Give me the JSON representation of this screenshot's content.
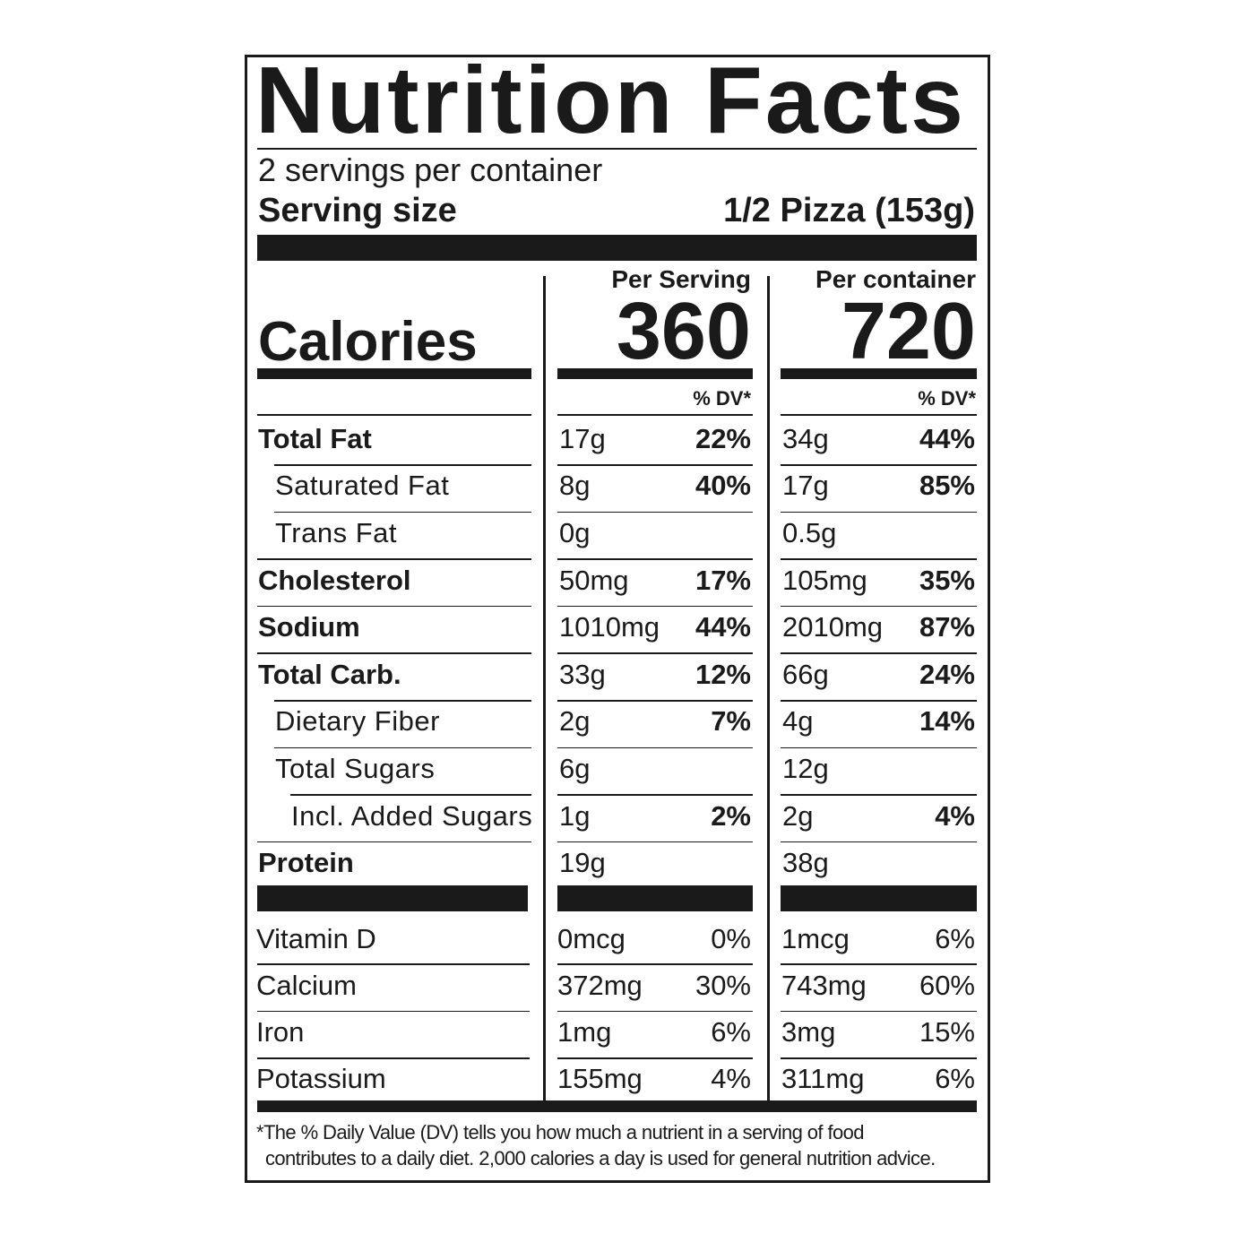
{
  "header": {
    "title": "Nutrition Facts",
    "servings": "2 servings per container",
    "serving_size_label": "Serving size",
    "serving_size_value": "1/2 Pizza (153g)"
  },
  "calories": {
    "label": "Calories",
    "per_serving_header": "Per Serving",
    "per_serving": "360",
    "per_container_header": "Per container",
    "per_container": "720",
    "dv_header": "% DV*"
  },
  "nutrients": [
    {
      "name": "Total Fat",
      "per_serving": {
        "amount": "17g",
        "dv": "22%"
      },
      "per_container": {
        "amount": "34g",
        "dv": "44%"
      }
    },
    {
      "name": "Saturated Fat",
      "per_serving": {
        "amount": "8g",
        "dv": "40%"
      },
      "per_container": {
        "amount": "17g",
        "dv": "85%"
      }
    },
    {
      "name": "Trans Fat",
      "per_serving": {
        "amount": "0g"
      },
      "per_container": {
        "amount": "0.5g"
      }
    },
    {
      "name": "Cholesterol",
      "per_serving": {
        "amount": "50mg",
        "dv": "17%"
      },
      "per_container": {
        "amount": "105mg",
        "dv": "35%"
      }
    },
    {
      "name": "Sodium",
      "per_serving": {
        "amount": "1010mg",
        "dv": "44%"
      },
      "per_container": {
        "amount": "2010mg",
        "dv": "87%"
      }
    },
    {
      "name": "Total Carb.",
      "per_serving": {
        "amount": "33g",
        "dv": "12%"
      },
      "per_container": {
        "amount": "66g",
        "dv": "24%"
      }
    },
    {
      "name": "Dietary Fiber",
      "per_serving": {
        "amount": "2g",
        "dv": "7%"
      },
      "per_container": {
        "amount": "4g",
        "dv": "14%"
      }
    },
    {
      "name": "Total Sugars",
      "per_serving": {
        "amount": "6g"
      },
      "per_container": {
        "amount": "12g"
      }
    },
    {
      "name": "Incl. Added Sugars",
      "per_serving": {
        "amount": "1g",
        "dv": "2%"
      },
      "per_container": {
        "amount": "2g",
        "dv": "4%"
      }
    },
    {
      "name": "Protein",
      "per_serving": {
        "amount": "19g"
      },
      "per_container": {
        "amount": "38g"
      }
    }
  ],
  "vitamins": [
    {
      "name": "Vitamin D",
      "per_serving": {
        "amount": "0mcg",
        "dv": "0%"
      },
      "per_container": {
        "amount": "1mcg",
        "dv": "6%"
      }
    },
    {
      "name": "Calcium",
      "per_serving": {
        "amount": "372mg",
        "dv": "30%"
      },
      "per_container": {
        "amount": "743mg",
        "dv": "60%"
      }
    },
    {
      "name": "Iron",
      "per_serving": {
        "amount": "1mg",
        "dv": "6%"
      },
      "per_container": {
        "amount": "3mg",
        "dv": "15%"
      }
    },
    {
      "name": "Potassium",
      "per_serving": {
        "amount": "155mg",
        "dv": "4%"
      },
      "per_container": {
        "amount": "311mg",
        "dv": "6%"
      }
    }
  ],
  "footnote": [
    "*The % Daily Value (DV) tells you how much a nutrient in a serving of food",
    "contributes to a daily diet. 2,000 calories a day is used for general nutrition advice."
  ]
}
